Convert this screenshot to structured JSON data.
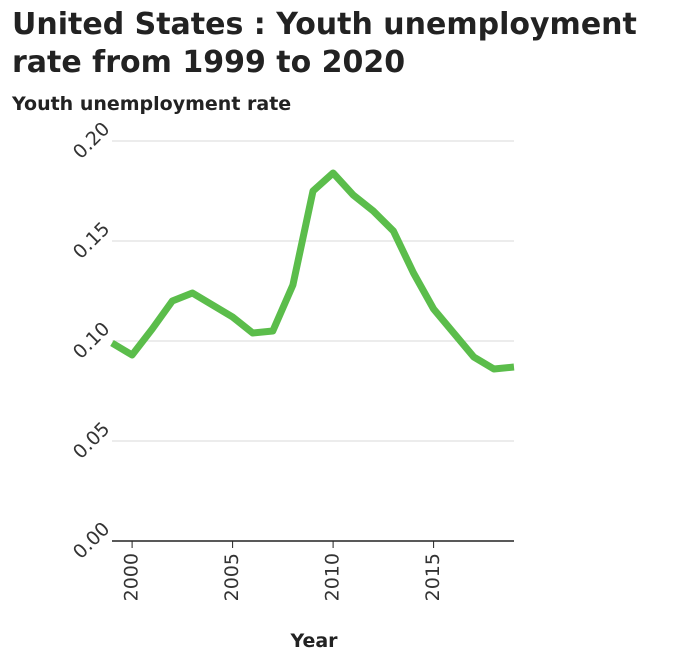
{
  "chart_data": {
    "type": "line",
    "title": "United States : Youth unemployment rate from 1999 to 2020",
    "ylabel": "Youth unemployment rate",
    "xlabel": "Year",
    "xlim": [
      1999,
      2019
    ],
    "ylim": [
      0,
      0.2
    ],
    "yticks": [
      "0.00",
      "0.05",
      "0.10",
      "0.15",
      "0.20"
    ],
    "xticks": [
      "2000",
      "2005",
      "2010",
      "2015"
    ],
    "grid": true,
    "line_color": "#5bbd4b",
    "series": [
      {
        "x": [
          1999,
          2000,
          2001,
          2002,
          2003,
          2004,
          2005,
          2006,
          2007,
          2008,
          2009,
          2010,
          2011,
          2012,
          2013,
          2014,
          2015,
          2016,
          2017,
          2018,
          2019
        ],
        "values": [
          0.099,
          0.093,
          0.106,
          0.12,
          0.124,
          0.118,
          0.112,
          0.104,
          0.105,
          0.128,
          0.175,
          0.184,
          0.173,
          0.165,
          0.155,
          0.134,
          0.116,
          0.104,
          0.092,
          0.086,
          0.087
        ]
      }
    ]
  }
}
